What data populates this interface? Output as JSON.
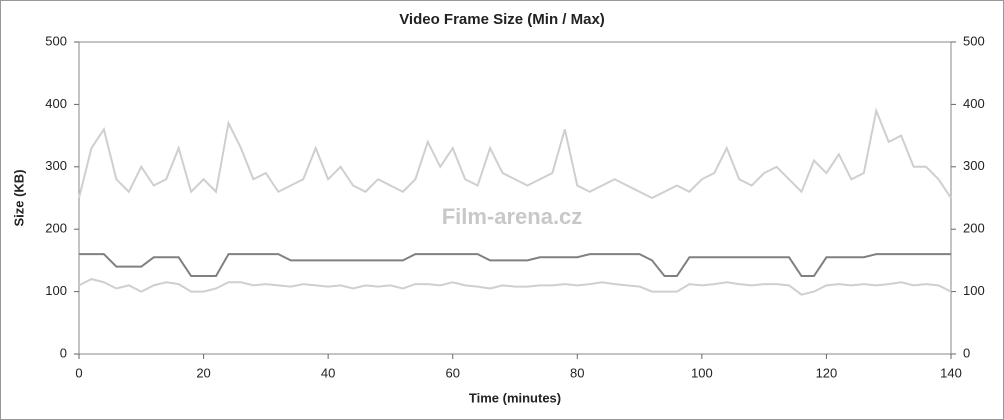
{
  "chart_data": {
    "type": "line",
    "title": "Video Frame Size (Min / Max)",
    "x_label": "Time (minutes)",
    "y_label": "Size (KB)",
    "watermark": "Film-arena.cz",
    "x": [
      0,
      2,
      4,
      6,
      8,
      10,
      12,
      14,
      16,
      18,
      20,
      22,
      24,
      26,
      28,
      30,
      32,
      34,
      36,
      38,
      40,
      42,
      44,
      46,
      48,
      50,
      52,
      54,
      56,
      58,
      60,
      62,
      64,
      66,
      68,
      70,
      72,
      74,
      76,
      78,
      80,
      82,
      84,
      86,
      88,
      90,
      92,
      94,
      96,
      98,
      100,
      102,
      104,
      106,
      108,
      110,
      112,
      114,
      116,
      118,
      120,
      122,
      124,
      126,
      128,
      130,
      132,
      134,
      136,
      138,
      140
    ],
    "series": [
      {
        "color": "#cfcfcf",
        "values": [
          250,
          330,
          360,
          280,
          260,
          300,
          270,
          280,
          330,
          260,
          280,
          260,
          370,
          330,
          280,
          290,
          260,
          270,
          280,
          330,
          280,
          300,
          270,
          260,
          280,
          270,
          260,
          280,
          340,
          300,
          330,
          280,
          270,
          330,
          290,
          280,
          270,
          280,
          290,
          360,
          270,
          260,
          270,
          280,
          270,
          260,
          250,
          260,
          270,
          260,
          280,
          290,
          330,
          280,
          270,
          290,
          300,
          280,
          260,
          310,
          290,
          320,
          280,
          290,
          390,
          340,
          350,
          300,
          300,
          280,
          250
        ]
      },
      {
        "color": "#cfcfcf",
        "values": [
          110,
          120,
          115,
          105,
          110,
          100,
          110,
          115,
          112,
          100,
          100,
          105,
          115,
          115,
          110,
          112,
          110,
          108,
          112,
          110,
          108,
          110,
          105,
          110,
          108,
          110,
          105,
          112,
          112,
          110,
          115,
          110,
          108,
          105,
          110,
          108,
          108,
          110,
          110,
          112,
          110,
          112,
          115,
          112,
          110,
          108,
          100,
          100,
          100,
          112,
          110,
          112,
          115,
          112,
          110,
          112,
          112,
          110,
          95,
          100,
          110,
          112,
          110,
          112,
          110,
          112,
          115,
          110,
          112,
          110,
          100
        ]
      },
      {
        "color": "#808080",
        "values": [
          160,
          160,
          160,
          140,
          140,
          140,
          155,
          155,
          155,
          125,
          125,
          125,
          160,
          160,
          160,
          160,
          160,
          150,
          150,
          150,
          150,
          150,
          150,
          150,
          150,
          150,
          150,
          160,
          160,
          160,
          160,
          160,
          160,
          150,
          150,
          150,
          150,
          155,
          155,
          155,
          155,
          160,
          160,
          160,
          160,
          160,
          150,
          125,
          125,
          155,
          155,
          155,
          155,
          155,
          155,
          155,
          155,
          155,
          125,
          125,
          155,
          155,
          155,
          155,
          160,
          160,
          160,
          160,
          160,
          160,
          160
        ]
      }
    ],
    "xlim": [
      0,
      140
    ],
    "xticks": [
      0,
      20,
      40,
      60,
      80,
      100,
      120,
      140
    ],
    "ylim": [
      0,
      500
    ],
    "yticks": [
      0,
      100,
      200,
      300,
      400,
      500
    ],
    "y2lim": [
      0,
      500
    ],
    "y2ticks": [
      0,
      100,
      200,
      300,
      400,
      500
    ]
  }
}
